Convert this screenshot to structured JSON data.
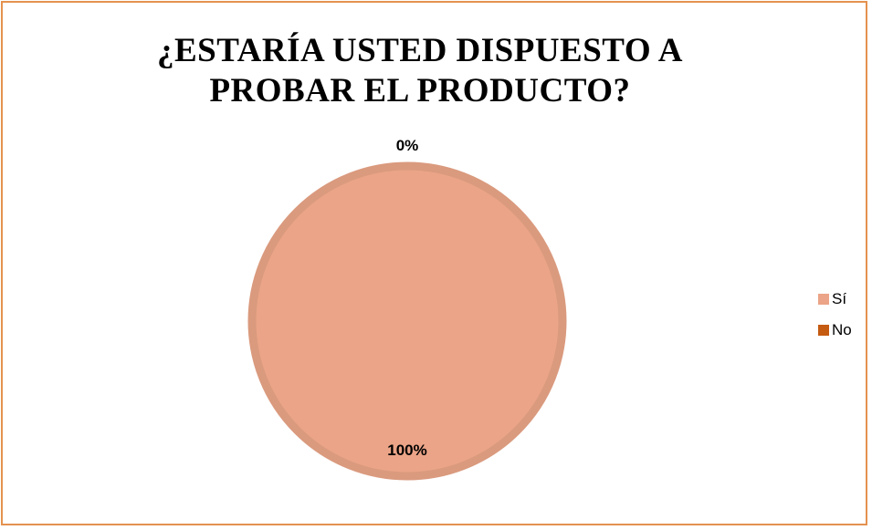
{
  "chart_data": {
    "type": "pie",
    "title_lines": [
      "¿ESTARÍA USTED DISPUESTO A",
      "PROBAR EL PRODUCTO?"
    ],
    "categories": [
      "Sí",
      "No"
    ],
    "values": [
      100,
      0
    ],
    "data_labels": [
      "100%",
      "0%"
    ],
    "colors": [
      "#eba487",
      "#c55a11"
    ],
    "edge_color": "#da9a7e",
    "frame_color": "#e4924f",
    "legend_position": "right"
  }
}
